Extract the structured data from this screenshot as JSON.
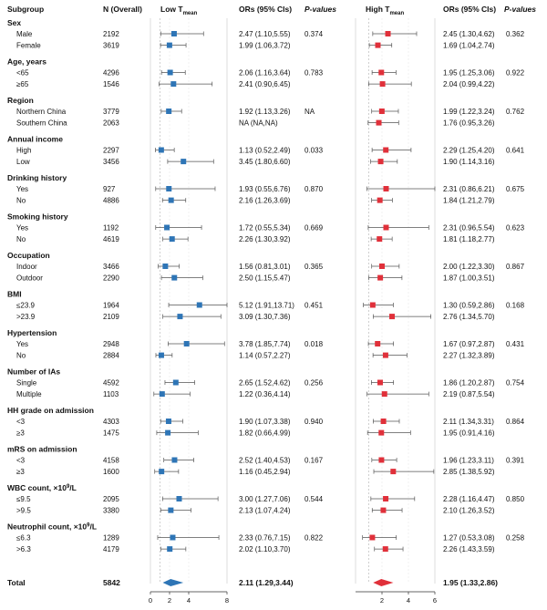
{
  "headers": {
    "subgroup": "Subgroup",
    "n": "N (Overall)",
    "low_main": "Low T",
    "low_sub": "mean",
    "ors1": "ORs (95% CIs)",
    "p1": "P-values",
    "high_main": "High T",
    "high_sub": "mean",
    "ors2": "ORs (95% CIs)",
    "p2": "P-values"
  },
  "chart_data": {
    "type": "forest",
    "panels": [
      {
        "name": "Low Tmean",
        "xlim": [
          0,
          8
        ],
        "ticks": [
          "0",
          "2",
          "4",
          "8"
        ],
        "reference_line": 1,
        "marker": "square",
        "color": "#2e75b6"
      },
      {
        "name": "High Tmean",
        "xlim": [
          0,
          6
        ],
        "ticks": [
          "2",
          "4",
          "6"
        ],
        "reference_line": 1,
        "marker": "square",
        "color": "#e0303a"
      }
    ],
    "groups": [
      {
        "label": "Sex",
        "p_low": "0.374",
        "p_high": "0.362",
        "rows": [
          {
            "label": "Male",
            "n": "2192",
            "low": {
              "or": 2.47,
              "lo": 1.1,
              "hi": 5.55,
              "text": "2.47 (1.10,5.55)"
            },
            "high": {
              "or": 2.45,
              "lo": 1.3,
              "hi": 4.62,
              "text": "2.45 (1.30,4.62)"
            }
          },
          {
            "label": "Female",
            "n": "3619",
            "low": {
              "or": 1.99,
              "lo": 1.06,
              "hi": 3.72,
              "text": "1.99 (1.06,3.72)"
            },
            "high": {
              "or": 1.69,
              "lo": 1.04,
              "hi": 2.74,
              "text": "1.69 (1.04,2.74)"
            }
          }
        ]
      },
      {
        "label": "Age, years",
        "p_low": "0.783",
        "p_high": "0.922",
        "rows": [
          {
            "label": "<65",
            "n": "4296",
            "low": {
              "or": 2.06,
              "lo": 1.16,
              "hi": 3.64,
              "text": "2.06 (1.16,3.64)"
            },
            "high": {
              "or": 1.95,
              "lo": 1.25,
              "hi": 3.06,
              "text": "1.95 (1.25,3.06)"
            }
          },
          {
            "label": "≥65",
            "n": "1546",
            "low": {
              "or": 2.41,
              "lo": 0.9,
              "hi": 6.45,
              "text": "2.41 (0.90,6.45)"
            },
            "high": {
              "or": 2.04,
              "lo": 0.99,
              "hi": 4.22,
              "text": "2.04 (0.99,4.22)"
            }
          }
        ]
      },
      {
        "label": "Region",
        "p_low": "NA",
        "p_high": "0.762",
        "rows": [
          {
            "label": "Northern China",
            "n": "3779",
            "low": {
              "or": 1.92,
              "lo": 1.13,
              "hi": 3.26,
              "text": "1.92 (1.13,3.26)"
            },
            "high": {
              "or": 1.99,
              "lo": 1.22,
              "hi": 3.24,
              "text": "1.99 (1.22,3.24)"
            }
          },
          {
            "label": "Southern China",
            "n": "2063",
            "low": {
              "or": null,
              "lo": null,
              "hi": null,
              "text": "NA (NA,NA)"
            },
            "high": {
              "or": 1.76,
              "lo": 0.95,
              "hi": 3.26,
              "text": "1.76 (0.95,3.26)"
            }
          }
        ]
      },
      {
        "label": "Annual income",
        "p_low": "0.033",
        "p_high": "0.641",
        "rows": [
          {
            "label": "High",
            "n": "2297",
            "low": {
              "or": 1.13,
              "lo": 0.52,
              "hi": 2.49,
              "text": "1.13 (0.52,2.49)"
            },
            "high": {
              "or": 2.29,
              "lo": 1.25,
              "hi": 4.2,
              "text": "2.29 (1.25,4.20)"
            }
          },
          {
            "label": "Low",
            "n": "3456",
            "low": {
              "or": 3.45,
              "lo": 1.8,
              "hi": 6.6,
              "text": "3.45 (1.80,6.60)"
            },
            "high": {
              "or": 1.9,
              "lo": 1.14,
              "hi": 3.16,
              "text": "1.90 (1.14,3.16)"
            }
          }
        ]
      },
      {
        "label": "Drinking history",
        "p_low": "0.870",
        "p_high": "0.675",
        "rows": [
          {
            "label": "Yes",
            "n": "927",
            "low": {
              "or": 1.93,
              "lo": 0.55,
              "hi": 6.76,
              "text": "1.93 (0.55,6.76)"
            },
            "high": {
              "or": 2.31,
              "lo": 0.86,
              "hi": 6.21,
              "text": "2.31 (0.86,6.21)"
            }
          },
          {
            "label": "No",
            "n": "4886",
            "low": {
              "or": 2.16,
              "lo": 1.26,
              "hi": 3.69,
              "text": "2.16 (1.26,3.69)"
            },
            "high": {
              "or": 1.84,
              "lo": 1.21,
              "hi": 2.79,
              "text": "1.84 (1.21,2.79)"
            }
          }
        ]
      },
      {
        "label": "Smoking history",
        "p_low": "0.669",
        "p_high": "0.623",
        "rows": [
          {
            "label": "Yes",
            "n": "1192",
            "low": {
              "or": 1.72,
              "lo": 0.55,
              "hi": 5.34,
              "text": "1.72 (0.55,5.34)"
            },
            "high": {
              "or": 2.31,
              "lo": 0.96,
              "hi": 5.54,
              "text": "2.31 (0.96,5.54)"
            }
          },
          {
            "label": "No",
            "n": "4619",
            "low": {
              "or": 2.26,
              "lo": 1.3,
              "hi": 3.92,
              "text": "2.26 (1.30,3.92)"
            },
            "high": {
              "or": 1.81,
              "lo": 1.18,
              "hi": 2.77,
              "text": "1.81 (1.18,2.77)"
            }
          }
        ]
      },
      {
        "label": "Occupation",
        "p_low": "0.365",
        "p_high": "0.867",
        "rows": [
          {
            "label": "Indoor",
            "n": "3466",
            "low": {
              "or": 1.56,
              "lo": 0.81,
              "hi": 3.01,
              "text": "1.56 (0.81,3.01)"
            },
            "high": {
              "or": 2.0,
              "lo": 1.22,
              "hi": 3.3,
              "text": "2.00 (1.22,3.30)"
            }
          },
          {
            "label": "Outdoor",
            "n": "2290",
            "low": {
              "or": 2.5,
              "lo": 1.15,
              "hi": 5.47,
              "text": "2.50 (1.15,5.47)"
            },
            "high": {
              "or": 1.87,
              "lo": 1.0,
              "hi": 3.51,
              "text": "1.87 (1.00,3.51)"
            }
          }
        ]
      },
      {
        "label": "BMI",
        "p_low": "0.451",
        "p_high": "0.168",
        "rows": [
          {
            "label": "≤23.9",
            "n": "1964",
            "low": {
              "or": 5.12,
              "lo": 1.91,
              "hi": 13.71,
              "text": "5.12 (1.91,13.71)"
            },
            "high": {
              "or": 1.3,
              "lo": 0.59,
              "hi": 2.86,
              "text": "1.30 (0.59,2.86)"
            }
          },
          {
            "label": ">23.9",
            "n": "2109",
            "low": {
              "or": 3.09,
              "lo": 1.3,
              "hi": 7.36,
              "text": "3.09 (1.30,7.36)"
            },
            "high": {
              "or": 2.76,
              "lo": 1.34,
              "hi": 5.7,
              "text": "2.76 (1.34,5.70)"
            }
          }
        ]
      },
      {
        "label": "Hypertension",
        "p_low": "0.018",
        "p_high": "0.431",
        "rows": [
          {
            "label": "Yes",
            "n": "2948",
            "low": {
              "or": 3.78,
              "lo": 1.85,
              "hi": 7.74,
              "text": "3.78 (1.85,7.74)"
            },
            "high": {
              "or": 1.67,
              "lo": 0.97,
              "hi": 2.87,
              "text": "1.67 (0.97,2.87)"
            }
          },
          {
            "label": "No",
            "n": "2884",
            "low": {
              "or": 1.14,
              "lo": 0.57,
              "hi": 2.27,
              "text": "1.14 (0.57,2.27)"
            },
            "high": {
              "or": 2.27,
              "lo": 1.32,
              "hi": 3.89,
              "text": "2.27 (1.32,3.89)"
            }
          }
        ]
      },
      {
        "label": "Number of IAs",
        "p_low": "0.256",
        "p_high": "0.754",
        "rows": [
          {
            "label": "Single",
            "n": "4592",
            "low": {
              "or": 2.65,
              "lo": 1.52,
              "hi": 4.62,
              "text": "2.65 (1.52,4.62)"
            },
            "high": {
              "or": 1.86,
              "lo": 1.2,
              "hi": 2.87,
              "text": "1.86 (1.20,2.87)"
            }
          },
          {
            "label": "Multiple",
            "n": "1103",
            "low": {
              "or": 1.22,
              "lo": 0.36,
              "hi": 4.14,
              "text": "1.22 (0.36,4.14)"
            },
            "high": {
              "or": 2.19,
              "lo": 0.87,
              "hi": 5.54,
              "text": "2.19 (0.87,5.54)"
            }
          }
        ]
      },
      {
        "label": "HH grade on admission",
        "p_low": "0.940",
        "p_high": "0.864",
        "rows": [
          {
            "label": "<3",
            "n": "4303",
            "low": {
              "or": 1.9,
              "lo": 1.07,
              "hi": 3.38,
              "text": "1.90 (1.07,3.38)"
            },
            "high": {
              "or": 2.11,
              "lo": 1.34,
              "hi": 3.31,
              "text": "2.11 (1.34,3.31)"
            }
          },
          {
            "label": "≥3",
            "n": "1475",
            "low": {
              "or": 1.82,
              "lo": 0.66,
              "hi": 4.99,
              "text": "1.82 (0.66,4.99)"
            },
            "high": {
              "or": 1.95,
              "lo": 0.91,
              "hi": 4.16,
              "text": "1.95 (0.91,4.16)"
            }
          }
        ]
      },
      {
        "label": "mRS on admission",
        "p_low": "0.167",
        "p_high": "0.391",
        "rows": [
          {
            "label": "<3",
            "n": "4158",
            "low": {
              "or": 2.52,
              "lo": 1.4,
              "hi": 4.53,
              "text": "2.52 (1.40,4.53)"
            },
            "high": {
              "or": 1.96,
              "lo": 1.23,
              "hi": 3.11,
              "text": "1.96 (1.23,3.11)"
            }
          },
          {
            "label": "≥3",
            "n": "1600",
            "low": {
              "or": 1.16,
              "lo": 0.45,
              "hi": 2.94,
              "text": "1.16 (0.45,2.94)"
            },
            "high": {
              "or": 2.85,
              "lo": 1.38,
              "hi": 5.92,
              "text": "2.85 (1.38,5.92)"
            }
          }
        ]
      },
      {
        "label": "WBC count, ×10",
        "label_sup": "9",
        "label_tail": "/L",
        "p_low": "0.544",
        "p_high": "0.850",
        "rows": [
          {
            "label": "≤9.5",
            "n": "2095",
            "low": {
              "or": 3.0,
              "lo": 1.27,
              "hi": 7.06,
              "text": "3.00 (1.27,7.06)"
            },
            "high": {
              "or": 2.28,
              "lo": 1.16,
              "hi": 4.47,
              "text": "2.28 (1.16,4.47)"
            }
          },
          {
            "label": ">9.5",
            "n": "3380",
            "low": {
              "or": 2.13,
              "lo": 1.07,
              "hi": 4.24,
              "text": "2.13 (1.07,4.24)"
            },
            "high": {
              "or": 2.1,
              "lo": 1.26,
              "hi": 3.52,
              "text": "2.10 (1.26,3.52)"
            }
          }
        ]
      },
      {
        "label": "Neutrophil count, ×10",
        "label_sup": "9",
        "label_tail": "/L",
        "p_low": "0.822",
        "p_high": "0.258",
        "rows": [
          {
            "label": "≤6.3",
            "n": "1289",
            "low": {
              "or": 2.33,
              "lo": 0.76,
              "hi": 7.15,
              "text": "2.33 (0.76,7.15)"
            },
            "high": {
              "or": 1.27,
              "lo": 0.53,
              "hi": 3.08,
              "text": "1.27 (0.53,3.08)"
            }
          },
          {
            "label": ">6.3",
            "n": "4179",
            "low": {
              "or": 2.02,
              "lo": 1.1,
              "hi": 3.7,
              "text": "2.02 (1.10,3.70)"
            },
            "high": {
              "or": 2.26,
              "lo": 1.43,
              "hi": 3.59,
              "text": "2.26 (1.43,3.59)"
            }
          }
        ]
      }
    ],
    "total": {
      "label": "Total",
      "n": "5842",
      "low": {
        "or": 2.11,
        "lo": 1.29,
        "hi": 3.44,
        "text": "2.11 (1.29,3.44)"
      },
      "high": {
        "or": 1.95,
        "lo": 1.33,
        "hi": 2.86,
        "text": "1.95 (1.33,2.86)"
      }
    }
  }
}
